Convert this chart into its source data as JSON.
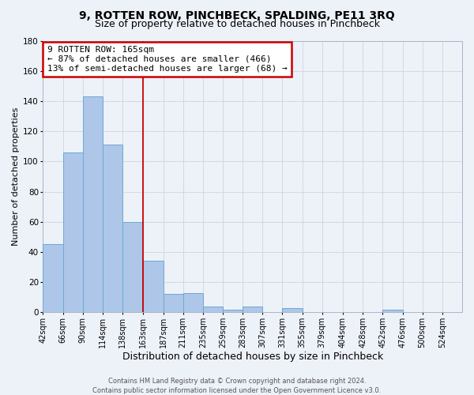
{
  "title": "9, ROTTEN ROW, PINCHBECK, SPALDING, PE11 3RQ",
  "subtitle": "Size of property relative to detached houses in Pinchbeck",
  "xlabel": "Distribution of detached houses by size in Pinchbeck",
  "ylabel": "Number of detached properties",
  "bar_left_edges": [
    42,
    66,
    90,
    114,
    138,
    163,
    187,
    211,
    235,
    259,
    283,
    307,
    331,
    355,
    379,
    404,
    428,
    452,
    476,
    500
  ],
  "bar_widths": [
    24,
    24,
    24,
    24,
    24,
    24,
    24,
    24,
    24,
    24,
    24,
    24,
    24,
    24,
    24,
    24,
    24,
    24,
    24,
    24
  ],
  "bar_heights": [
    45,
    106,
    143,
    111,
    60,
    34,
    12,
    13,
    4,
    2,
    4,
    0,
    3,
    0,
    0,
    0,
    0,
    2,
    0,
    0
  ],
  "tick_labels": [
    "42sqm",
    "66sqm",
    "90sqm",
    "114sqm",
    "138sqm",
    "163sqm",
    "187sqm",
    "211sqm",
    "235sqm",
    "259sqm",
    "283sqm",
    "307sqm",
    "331sqm",
    "355sqm",
    "379sqm",
    "404sqm",
    "428sqm",
    "452sqm",
    "476sqm",
    "500sqm",
    "524sqm"
  ],
  "bar_color": "#aec6e8",
  "bar_edgecolor": "#6aaad4",
  "vline_x_idx": 5,
  "vline_color": "#cc0000",
  "annotation_line1": "9 ROTTEN ROW: 165sqm",
  "annotation_line2": "← 87% of detached houses are smaller (466)",
  "annotation_line3": "13% of semi-detached houses are larger (68) →",
  "annotation_box_facecolor": "#ffffff",
  "annotation_box_edgecolor": "#cc0000",
  "ylim": [
    0,
    180
  ],
  "yticks": [
    0,
    20,
    40,
    60,
    80,
    100,
    120,
    140,
    160,
    180
  ],
  "grid_color": "#cdd5e0",
  "bg_color": "#edf1f8",
  "footer_line1": "Contains HM Land Registry data © Crown copyright and database right 2024.",
  "footer_line2": "Contains public sector information licensed under the Open Government Licence v3.0.",
  "title_fontsize": 10,
  "subtitle_fontsize": 9,
  "xlabel_fontsize": 9,
  "ylabel_fontsize": 8,
  "tick_fontsize": 7,
  "annotation_fontsize": 8,
  "footer_fontsize": 6
}
